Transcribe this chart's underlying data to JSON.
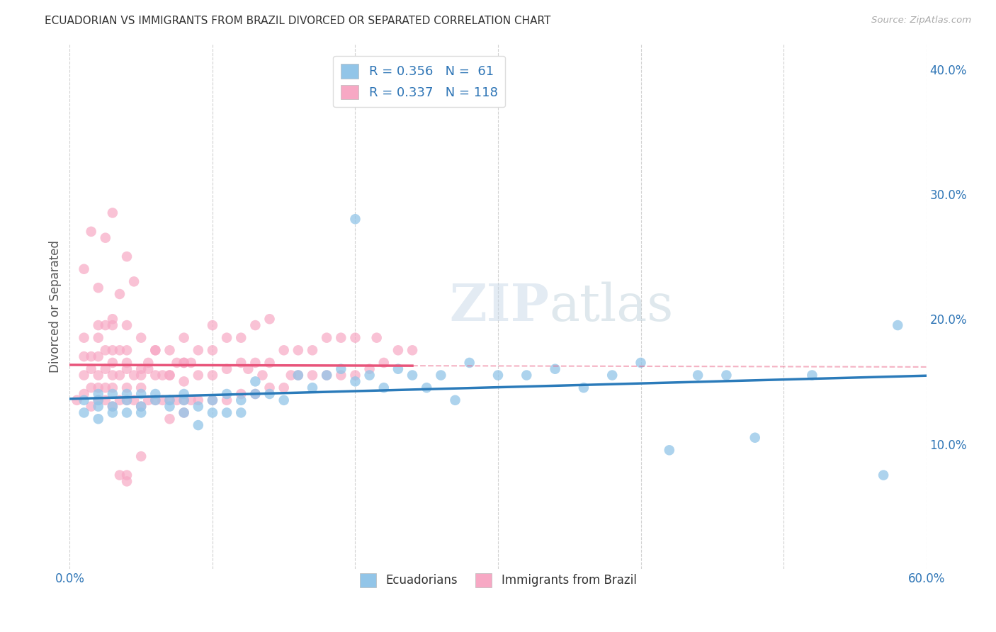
{
  "title": "ECUADORIAN VS IMMIGRANTS FROM BRAZIL DIVORCED OR SEPARATED CORRELATION CHART",
  "source": "Source: ZipAtlas.com",
  "ylabel": "Divorced or Separated",
  "xlim": [
    0.0,
    0.6
  ],
  "ylim": [
    0.0,
    0.42
  ],
  "xticks": [
    0.0,
    0.1,
    0.2,
    0.3,
    0.4,
    0.5,
    0.6
  ],
  "xticklabels": [
    "0.0%",
    "",
    "",
    "",
    "",
    "",
    "60.0%"
  ],
  "yticks_right": [
    0.1,
    0.2,
    0.3,
    0.4
  ],
  "yticklabels_right": [
    "10.0%",
    "20.0%",
    "30.0%",
    "40.0%"
  ],
  "legend1_label": "Ecuadorians",
  "legend2_label": "Immigrants from Brazil",
  "blue_color": "#92c5e8",
  "pink_color": "#f7a8c4",
  "blue_line_color": "#2b7bba",
  "pink_line_color": "#e8547a",
  "R_blue": 0.356,
  "N_blue": 61,
  "R_pink": 0.337,
  "N_pink": 118,
  "watermark_zip": "ZIP",
  "watermark_atlas": "atlas",
  "blue_scatter_x": [
    0.01,
    0.01,
    0.02,
    0.02,
    0.02,
    0.02,
    0.03,
    0.03,
    0.03,
    0.04,
    0.04,
    0.04,
    0.05,
    0.05,
    0.05,
    0.06,
    0.06,
    0.07,
    0.07,
    0.08,
    0.08,
    0.08,
    0.09,
    0.09,
    0.1,
    0.1,
    0.11,
    0.11,
    0.12,
    0.12,
    0.13,
    0.13,
    0.14,
    0.15,
    0.16,
    0.17,
    0.18,
    0.19,
    0.2,
    0.2,
    0.21,
    0.22,
    0.23,
    0.24,
    0.25,
    0.26,
    0.27,
    0.28,
    0.3,
    0.32,
    0.34,
    0.36,
    0.38,
    0.4,
    0.42,
    0.44,
    0.46,
    0.48,
    0.52,
    0.57,
    0.58
  ],
  "blue_scatter_y": [
    0.125,
    0.135,
    0.13,
    0.135,
    0.12,
    0.14,
    0.13,
    0.125,
    0.14,
    0.135,
    0.125,
    0.14,
    0.13,
    0.14,
    0.125,
    0.135,
    0.14,
    0.135,
    0.13,
    0.125,
    0.135,
    0.14,
    0.13,
    0.115,
    0.135,
    0.125,
    0.14,
    0.125,
    0.135,
    0.125,
    0.14,
    0.15,
    0.14,
    0.135,
    0.155,
    0.145,
    0.155,
    0.16,
    0.28,
    0.15,
    0.155,
    0.145,
    0.16,
    0.155,
    0.145,
    0.155,
    0.135,
    0.165,
    0.155,
    0.155,
    0.16,
    0.145,
    0.155,
    0.165,
    0.095,
    0.155,
    0.155,
    0.105,
    0.155,
    0.075,
    0.195
  ],
  "pink_scatter_x": [
    0.005,
    0.01,
    0.01,
    0.01,
    0.01,
    0.015,
    0.015,
    0.015,
    0.015,
    0.02,
    0.02,
    0.02,
    0.02,
    0.02,
    0.02,
    0.025,
    0.025,
    0.025,
    0.025,
    0.03,
    0.03,
    0.03,
    0.03,
    0.03,
    0.03,
    0.035,
    0.035,
    0.04,
    0.04,
    0.04,
    0.04,
    0.04,
    0.045,
    0.045,
    0.05,
    0.05,
    0.05,
    0.05,
    0.055,
    0.055,
    0.06,
    0.06,
    0.06,
    0.065,
    0.065,
    0.07,
    0.07,
    0.07,
    0.075,
    0.075,
    0.08,
    0.08,
    0.08,
    0.08,
    0.085,
    0.085,
    0.09,
    0.09,
    0.09,
    0.1,
    0.1,
    0.1,
    0.1,
    0.11,
    0.11,
    0.11,
    0.12,
    0.12,
    0.12,
    0.125,
    0.13,
    0.13,
    0.13,
    0.135,
    0.14,
    0.14,
    0.14,
    0.15,
    0.15,
    0.155,
    0.16,
    0.16,
    0.17,
    0.17,
    0.18,
    0.18,
    0.19,
    0.19,
    0.2,
    0.2,
    0.21,
    0.215,
    0.22,
    0.23,
    0.24,
    0.025,
    0.03,
    0.035,
    0.04,
    0.045,
    0.01,
    0.015,
    0.02,
    0.025,
    0.03,
    0.035,
    0.04,
    0.05,
    0.055,
    0.06,
    0.07,
    0.08,
    0.07,
    0.08,
    0.035,
    0.04,
    0.04,
    0.05
  ],
  "pink_scatter_y": [
    0.135,
    0.14,
    0.155,
    0.17,
    0.185,
    0.13,
    0.145,
    0.16,
    0.17,
    0.135,
    0.145,
    0.155,
    0.17,
    0.185,
    0.195,
    0.135,
    0.145,
    0.16,
    0.175,
    0.13,
    0.145,
    0.155,
    0.165,
    0.175,
    0.2,
    0.135,
    0.155,
    0.135,
    0.145,
    0.16,
    0.175,
    0.195,
    0.135,
    0.155,
    0.13,
    0.145,
    0.16,
    0.185,
    0.135,
    0.16,
    0.135,
    0.155,
    0.175,
    0.135,
    0.155,
    0.135,
    0.155,
    0.175,
    0.135,
    0.165,
    0.135,
    0.15,
    0.165,
    0.185,
    0.135,
    0.165,
    0.135,
    0.155,
    0.175,
    0.135,
    0.155,
    0.175,
    0.195,
    0.135,
    0.16,
    0.185,
    0.14,
    0.165,
    0.185,
    0.16,
    0.14,
    0.165,
    0.195,
    0.155,
    0.145,
    0.165,
    0.2,
    0.145,
    0.175,
    0.155,
    0.155,
    0.175,
    0.155,
    0.175,
    0.155,
    0.185,
    0.155,
    0.185,
    0.155,
    0.185,
    0.16,
    0.185,
    0.165,
    0.175,
    0.175,
    0.265,
    0.285,
    0.22,
    0.25,
    0.23,
    0.24,
    0.27,
    0.225,
    0.195,
    0.195,
    0.175,
    0.165,
    0.155,
    0.165,
    0.175,
    0.155,
    0.165,
    0.12,
    0.125,
    0.075,
    0.075,
    0.07,
    0.09
  ]
}
